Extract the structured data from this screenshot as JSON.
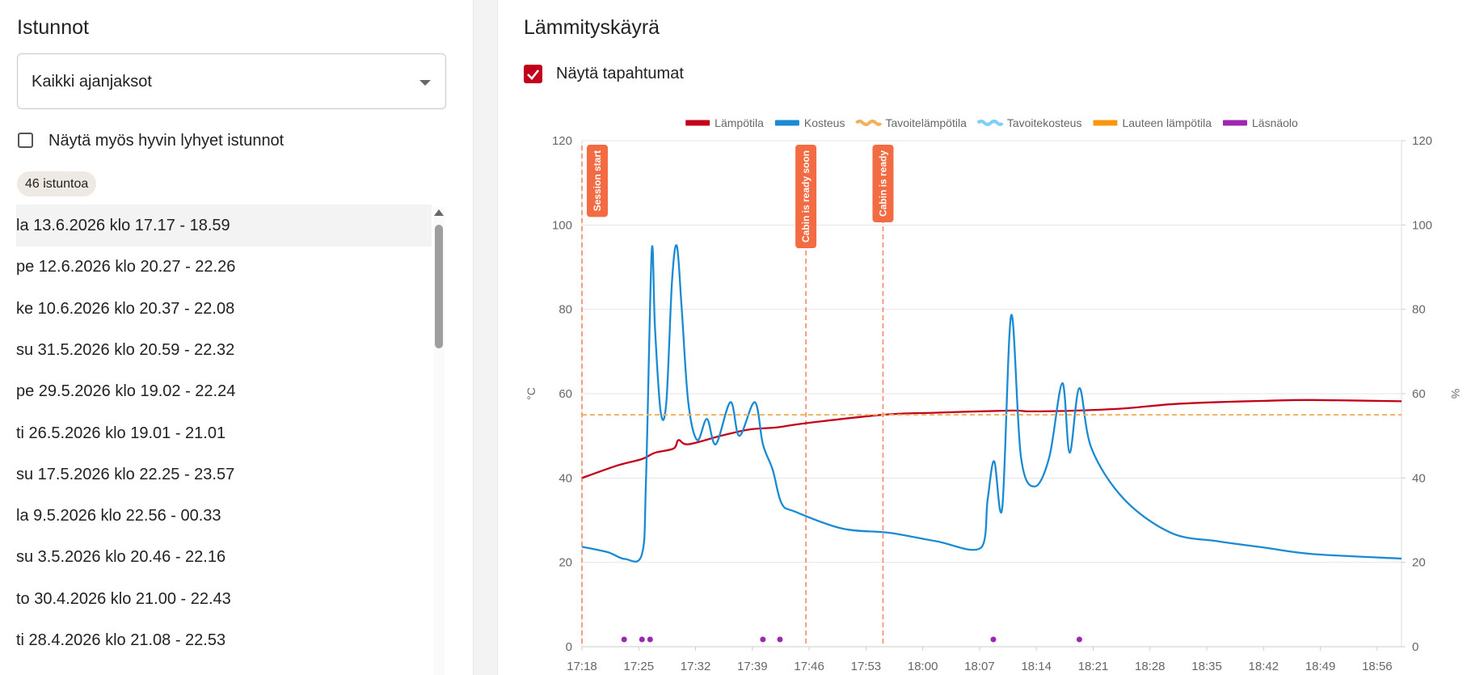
{
  "sidebar": {
    "title": "Istunnot",
    "period_select": "Kaikki ajanjaksot",
    "short_sessions_label": "Näytä myös hyvin lyhyet istunnot",
    "count_chip": "46 istuntoa",
    "sessions": [
      "la 13.6.2026 klo 17.17 - 18.59",
      "pe 12.6.2026 klo 20.27 - 22.26",
      "ke 10.6.2026 klo 20.37 - 22.08",
      "su 31.5.2026 klo 20.59 - 22.32",
      "pe 29.5.2026 klo 19.02 - 22.24",
      "ti 26.5.2026 klo 19.01 - 21.01",
      "su 17.5.2026 klo 22.25 - 23.57",
      "la 9.5.2026 klo 22.56 - 00.33",
      "su 3.5.2026 klo 20.46 - 22.16",
      "to 30.4.2026 klo 21.00 - 22.43",
      "ti 28.4.2026 klo 21.08 - 22.53"
    ]
  },
  "panel_title": "Lämmityskäyrä",
  "show_events_label": "Näytä tapahtumat",
  "chart_data": {
    "type": "line",
    "y_label": "°C",
    "y2_label": "%",
    "xlim": [
      1038,
      1139
    ],
    "xticks": [
      {
        "value": 1038,
        "label": "17:18"
      },
      {
        "value": 1045,
        "label": "17:25"
      },
      {
        "value": 1052,
        "label": "17:32"
      },
      {
        "value": 1059,
        "label": "17:39"
      },
      {
        "value": 1066,
        "label": "17:46"
      },
      {
        "value": 1073,
        "label": "17:53"
      },
      {
        "value": 1080,
        "label": "18:00"
      },
      {
        "value": 1087,
        "label": "18:07"
      },
      {
        "value": 1094,
        "label": "18:14"
      },
      {
        "value": 1101,
        "label": "18:21"
      },
      {
        "value": 1108,
        "label": "18:28"
      },
      {
        "value": 1115,
        "label": "18:35"
      },
      {
        "value": 1122,
        "label": "18:42"
      },
      {
        "value": 1129,
        "label": "18:49"
      },
      {
        "value": 1136,
        "label": "18:56"
      }
    ],
    "ylim": [
      0,
      120
    ],
    "yticks": [
      0,
      20,
      40,
      60,
      80,
      100,
      120
    ],
    "y2lim": [
      0,
      120
    ],
    "y2ticks": [
      0,
      20,
      40,
      60,
      80,
      100,
      120
    ],
    "grid": true,
    "legend": "top",
    "series": [
      {
        "name": "Lämpötila",
        "color": "#c3001b",
        "axis": "y",
        "x": [
          1038,
          1042.4,
          1045.4,
          1047,
          1049.3,
          1049.9,
          1051.1,
          1055.1,
          1058.6,
          1062,
          1065.6,
          1075.1,
          1081.7,
          1090.9,
          1093.2,
          1099,
          1104.8,
          1110.6,
          1116.4,
          1122.1,
          1127.9,
          1139
        ],
        "values": [
          40,
          43,
          44.5,
          46,
          47,
          49,
          48,
          50,
          51.5,
          52,
          53,
          55,
          55.5,
          56,
          55.8,
          56,
          56.5,
          57.5,
          58,
          58.3,
          58.5,
          58.2
        ]
      },
      {
        "name": "Kosteus",
        "color": "#1a8ad2",
        "axis": "y2",
        "x": [
          1038,
          1041.2,
          1043.3,
          1045.4,
          1045.9,
          1046.6,
          1047,
          1047.7,
          1048.4,
          1049.1,
          1049.7,
          1050.3,
          1051.1,
          1052.2,
          1053.4,
          1054.5,
          1056.3,
          1057.4,
          1059.3,
          1060.3,
          1061.5,
          1062.6,
          1064.3,
          1070.1,
          1075.9,
          1081.7,
          1087.2,
          1088,
          1088.8,
          1089.8,
          1090.9,
          1092.1,
          1093.8,
          1095.6,
          1097.2,
          1098.1,
          1099.3,
          1100.8,
          1104.8,
          1110.6,
          1116.4,
          1122.1,
          1127.9,
          1139
        ],
        "values": [
          23.7,
          22.4,
          20.8,
          22,
          40,
          93.8,
          75.6,
          55.7,
          58,
          86.7,
          95,
          80,
          58,
          49,
          54,
          48,
          58,
          50,
          58,
          48,
          42,
          34,
          32,
          28,
          27,
          25,
          23.5,
          35,
          44,
          33,
          78.6,
          45,
          38,
          45,
          62.5,
          46,
          61.3,
          47,
          35,
          27,
          25,
          23.5,
          22,
          20.9
        ]
      },
      {
        "name": "Tavoitelämpötila",
        "color": "#f0b25e",
        "axis": "y",
        "dashed": true,
        "x": [
          1038,
          1139
        ],
        "values": [
          55,
          55
        ]
      },
      {
        "name": "Tavoitekosteus",
        "color": "#7fd0f7",
        "axis": "y2",
        "dashed": true,
        "x": [],
        "values": []
      },
      {
        "name": "Lauteen lämpötila",
        "color": "#f7990f",
        "axis": "y",
        "x": [],
        "values": []
      },
      {
        "name": "Läsnäolo",
        "color": "#9c27b0",
        "axis": "y",
        "dots": true,
        "x": [
          1043.2,
          1045.4,
          1046.4,
          1060.3,
          1062.4,
          1088.7,
          1099.3
        ],
        "values": [
          0,
          0,
          0,
          0,
          0,
          0,
          0
        ]
      }
    ],
    "events": [
      {
        "label": "Session start",
        "x": 1038
      },
      {
        "label": "Cabin is ready soon",
        "x": 1065.6
      },
      {
        "label": "Cabin is ready",
        "x": 1075.1
      }
    ],
    "event_color": "#f26b43"
  }
}
